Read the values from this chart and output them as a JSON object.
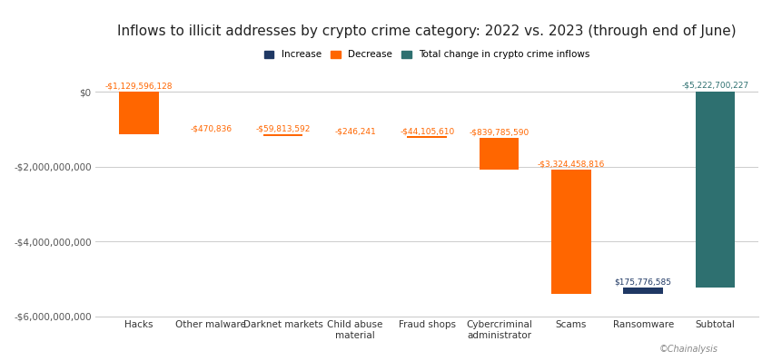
{
  "title": "Inflows to illicit addresses by crypto crime category: 2022 vs. 2023 (through end of June)",
  "categories": [
    "Hacks",
    "Other malware",
    "Darknet markets",
    "Child abuse\nmaterial",
    "Fraud shops",
    "Cybercriminal\nadministrator",
    "Scams",
    "Ransomware",
    "Subtotal"
  ],
  "values": [
    -1129596128,
    -470836,
    -59813592,
    -246241,
    -44105610,
    -839785590,
    -3324458816,
    175776585,
    -5222700227
  ],
  "bar_types": [
    "decrease",
    "decrease",
    "decrease",
    "decrease",
    "decrease",
    "decrease",
    "decrease",
    "increase",
    "subtotal"
  ],
  "labels": [
    "-$1,129,596,128",
    "-$470,836",
    "-$59,813,592",
    "-$246,241",
    "-$44,105,610",
    "-$839,785,590",
    "-$3,324,458,816",
    "$175,776,585",
    "-$5,222,700,227"
  ],
  "colors": {
    "decrease": "#FF6600",
    "increase": "#1F3864",
    "subtotal": "#2E7070"
  },
  "legend": {
    "increase_label": "Increase",
    "decrease_label": "Decrease",
    "subtotal_label": "Total change in crypto crime inflows"
  },
  "ylim": [
    -6000000000,
    500000000
  ],
  "yticks": [
    0,
    -2000000000,
    -4000000000,
    -6000000000
  ],
  "ytick_labels": [
    "$0",
    "-$2,000,000,000",
    "-$4,000,000,000",
    "-$6,000,000,000"
  ],
  "background_color": "#FFFFFF",
  "grid_color": "#CCCCCC",
  "label_color_decrease": "#FF6600",
  "label_color_increase": "#1F3864",
  "label_color_subtotal": "#2E7070",
  "source_text": "©Chainalysis",
  "title_fontsize": 11,
  "label_fontsize": 6.5,
  "tick_fontsize": 7.5
}
